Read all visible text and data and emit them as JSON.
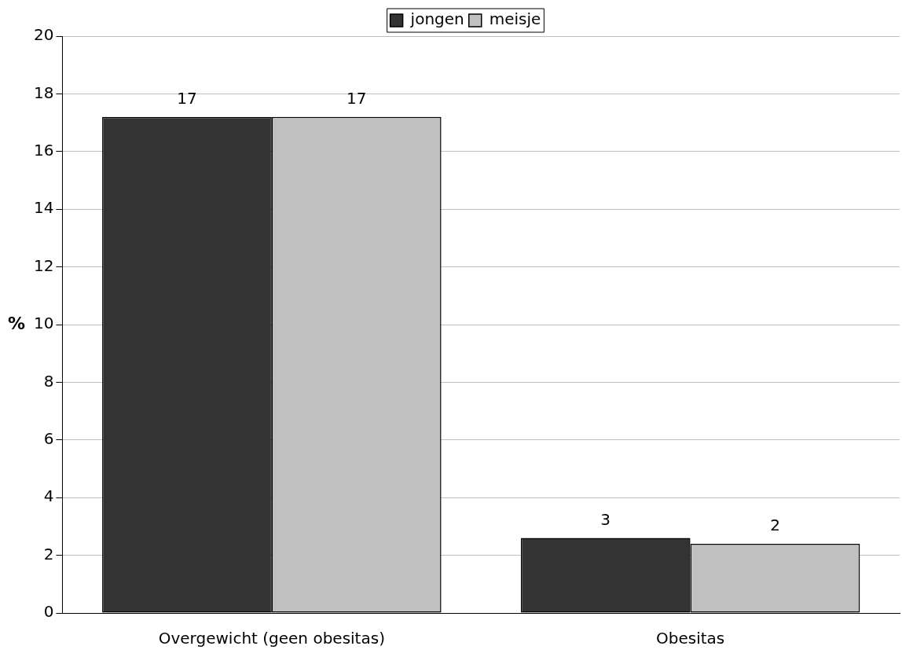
{
  "chart_data": {
    "type": "bar",
    "ylabel": "%",
    "categories": [
      "Overgewicht (geen obesitas)",
      "Obesitas"
    ],
    "series": [
      {
        "name": "jongen",
        "color": "#333333",
        "values": [
          17.2,
          2.6
        ],
        "value_labels": [
          "17",
          "3"
        ]
      },
      {
        "name": "meisje",
        "color": "#c0c0c0",
        "values": [
          17.2,
          2.4
        ],
        "value_labels": [
          "17",
          "2"
        ]
      }
    ],
    "ylim": [
      0,
      20
    ],
    "yticks": [
      0,
      2,
      4,
      6,
      8,
      10,
      12,
      14,
      16,
      18,
      20
    ],
    "grid": "y",
    "legend": "top"
  }
}
